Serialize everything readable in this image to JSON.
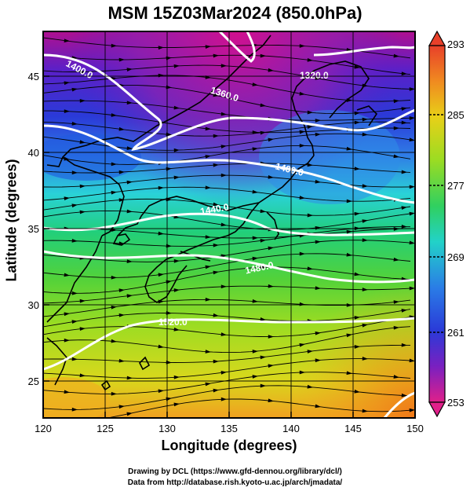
{
  "title": "MSM 15Z03Mar2024 (850.0hPa)",
  "xlabel": "Longitude (degrees)",
  "ylabel": "Latitude  (degrees)",
  "credits": [
    "Drawing by DCL (https://www.gfd-dennou.org/library/dcl/)",
    "Data from http://database.rish.kyoto-u.ac.jp/arch/jmadata/"
  ],
  "map": {
    "lon_range": [
      120,
      150
    ],
    "lat_range": [
      22.4,
      47.6
    ],
    "x_ticks": [
      "120",
      "125",
      "130",
      "135",
      "140",
      "145",
      "150"
    ],
    "y_ticks": [
      "25",
      "30",
      "35",
      "40",
      "45"
    ],
    "colorbar_ticks": [
      "293",
      "285",
      "277",
      "269",
      "261",
      "253"
    ],
    "colorbar_range": [
      253,
      293
    ]
  },
  "contours": [
    {
      "label": "1320.0"
    },
    {
      "label": "1360.0"
    },
    {
      "label": "1400.0"
    },
    {
      "label": "1400.0"
    },
    {
      "label": "1440.0"
    },
    {
      "label": "1480.0"
    },
    {
      "label": "1520.0"
    }
  ],
  "colors": {
    "cold": "#c8169a",
    "cool": "#2f4ee0",
    "mid": "#19dcd0",
    "warm": "#7ed61a",
    "hot": "#f0b020"
  }
}
